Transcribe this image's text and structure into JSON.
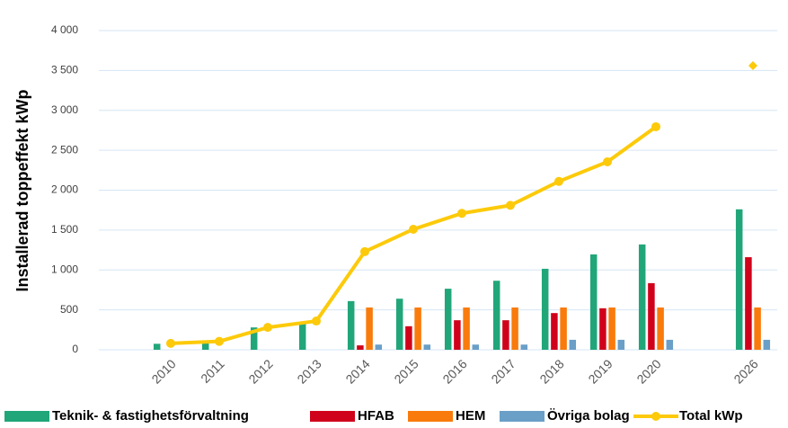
{
  "chart_data": {
    "type": "bar",
    "y_label": "Installerad toppeffekt kWp",
    "categories": [
      "2010",
      "2011",
      "2012",
      "2013",
      "2014",
      "2015",
      "2016",
      "2017",
      "2018",
      "2019",
      "2020",
      null,
      "2026"
    ],
    "series": [
      {
        "name": "Teknik- & fastighetsförvaltning",
        "color": "#21a67a",
        "type": "bar",
        "values": [
          75,
          80,
          280,
          330,
          610,
          640,
          765,
          865,
          1015,
          1195,
          1320,
          null,
          1760
        ]
      },
      {
        "name": "HFAB",
        "color": "#d0021b",
        "type": "bar",
        "values": [
          null,
          null,
          null,
          null,
          55,
          295,
          370,
          370,
          460,
          520,
          835,
          null,
          1160
        ]
      },
      {
        "name": "HEM",
        "color": "#f97b0c",
        "type": "bar",
        "values": [
          null,
          null,
          null,
          null,
          530,
          530,
          530,
          530,
          530,
          530,
          530,
          null,
          530
        ]
      },
      {
        "name": "Övriga bolag",
        "color": "#6a9fc7",
        "type": "bar",
        "values": [
          null,
          null,
          null,
          null,
          65,
          65,
          65,
          65,
          125,
          125,
          125,
          null,
          125
        ]
      },
      {
        "name": "Total kWp",
        "color": "#fcca0a",
        "type": "line",
        "values": [
          80,
          105,
          280,
          360,
          1230,
          1510,
          1710,
          1810,
          2110,
          2355,
          2795,
          null,
          3560
        ]
      }
    ],
    "ylim": [
      0,
      4000
    ],
    "yticks": [
      0,
      500,
      {
        "value": 1000,
        "label": "1 000"
      },
      {
        "value": 1500,
        "label": "1 500"
      },
      {
        "value": 2000,
        "label": "2 000"
      },
      {
        "value": 2500,
        "label": "2 500"
      },
      {
        "value": 3000,
        "label": "3 000"
      },
      {
        "value": 3500,
        "label": "3 500"
      },
      {
        "value": 4000,
        "label": "4 000"
      }
    ],
    "grid": true,
    "legend": "bottom"
  }
}
